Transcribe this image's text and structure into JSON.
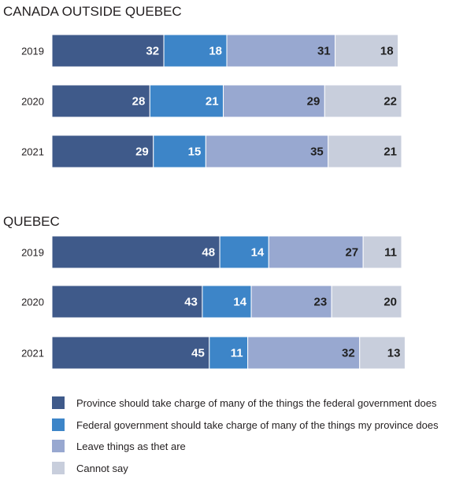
{
  "chart_data": [
    {
      "type": "bar",
      "stacked": true,
      "orientation": "horizontal",
      "title": "CANADA OUTSIDE QUEBEC",
      "categories": [
        "2019",
        "2020",
        "2021"
      ],
      "series": [
        {
          "name": "Province should take charge of many of the things the federal government does",
          "values": [
            32,
            28,
            29
          ],
          "color": "#3f5a8a"
        },
        {
          "name": "Federal government should take charge of many of the things my province does",
          "values": [
            18,
            21,
            15
          ],
          "color": "#3d85c8"
        },
        {
          "name": "Leave things as thet are",
          "values": [
            31,
            29,
            35
          ],
          "color": "#98a8d0"
        },
        {
          "name": "Cannot say",
          "values": [
            18,
            22,
            21
          ],
          "color": "#c8cedc"
        }
      ],
      "xlim": [
        0,
        100
      ]
    },
    {
      "type": "bar",
      "stacked": true,
      "orientation": "horizontal",
      "title": "QUEBEC",
      "categories": [
        "2019",
        "2020",
        "2021"
      ],
      "series": [
        {
          "name": "Province should take charge of many of the things the federal government does",
          "values": [
            48,
            43,
            45
          ],
          "color": "#3f5a8a"
        },
        {
          "name": "Federal government should take charge of many of the things my province does",
          "values": [
            14,
            14,
            11
          ],
          "color": "#3d85c8"
        },
        {
          "name": "Leave things as thet are",
          "values": [
            27,
            23,
            32
          ],
          "color": "#98a8d0"
        },
        {
          "name": "Cannot say",
          "values": [
            11,
            20,
            13
          ],
          "color": "#c8cedc"
        }
      ],
      "xlim": [
        0,
        100
      ]
    }
  ],
  "legend": {
    "placement": "bottom",
    "items": [
      {
        "label": "Province should take charge of many of the things the federal government does",
        "color": "#3f5a8a"
      },
      {
        "label": "Federal government should take charge of many of the things my province does",
        "color": "#3d85c8"
      },
      {
        "label": "Leave things as thet are",
        "color": "#98a8d0"
      },
      {
        "label": "Cannot say",
        "color": "#c8cedc"
      }
    ]
  },
  "label_colors": {
    "dark": "#ffffff",
    "light": "#1f1f1f"
  }
}
